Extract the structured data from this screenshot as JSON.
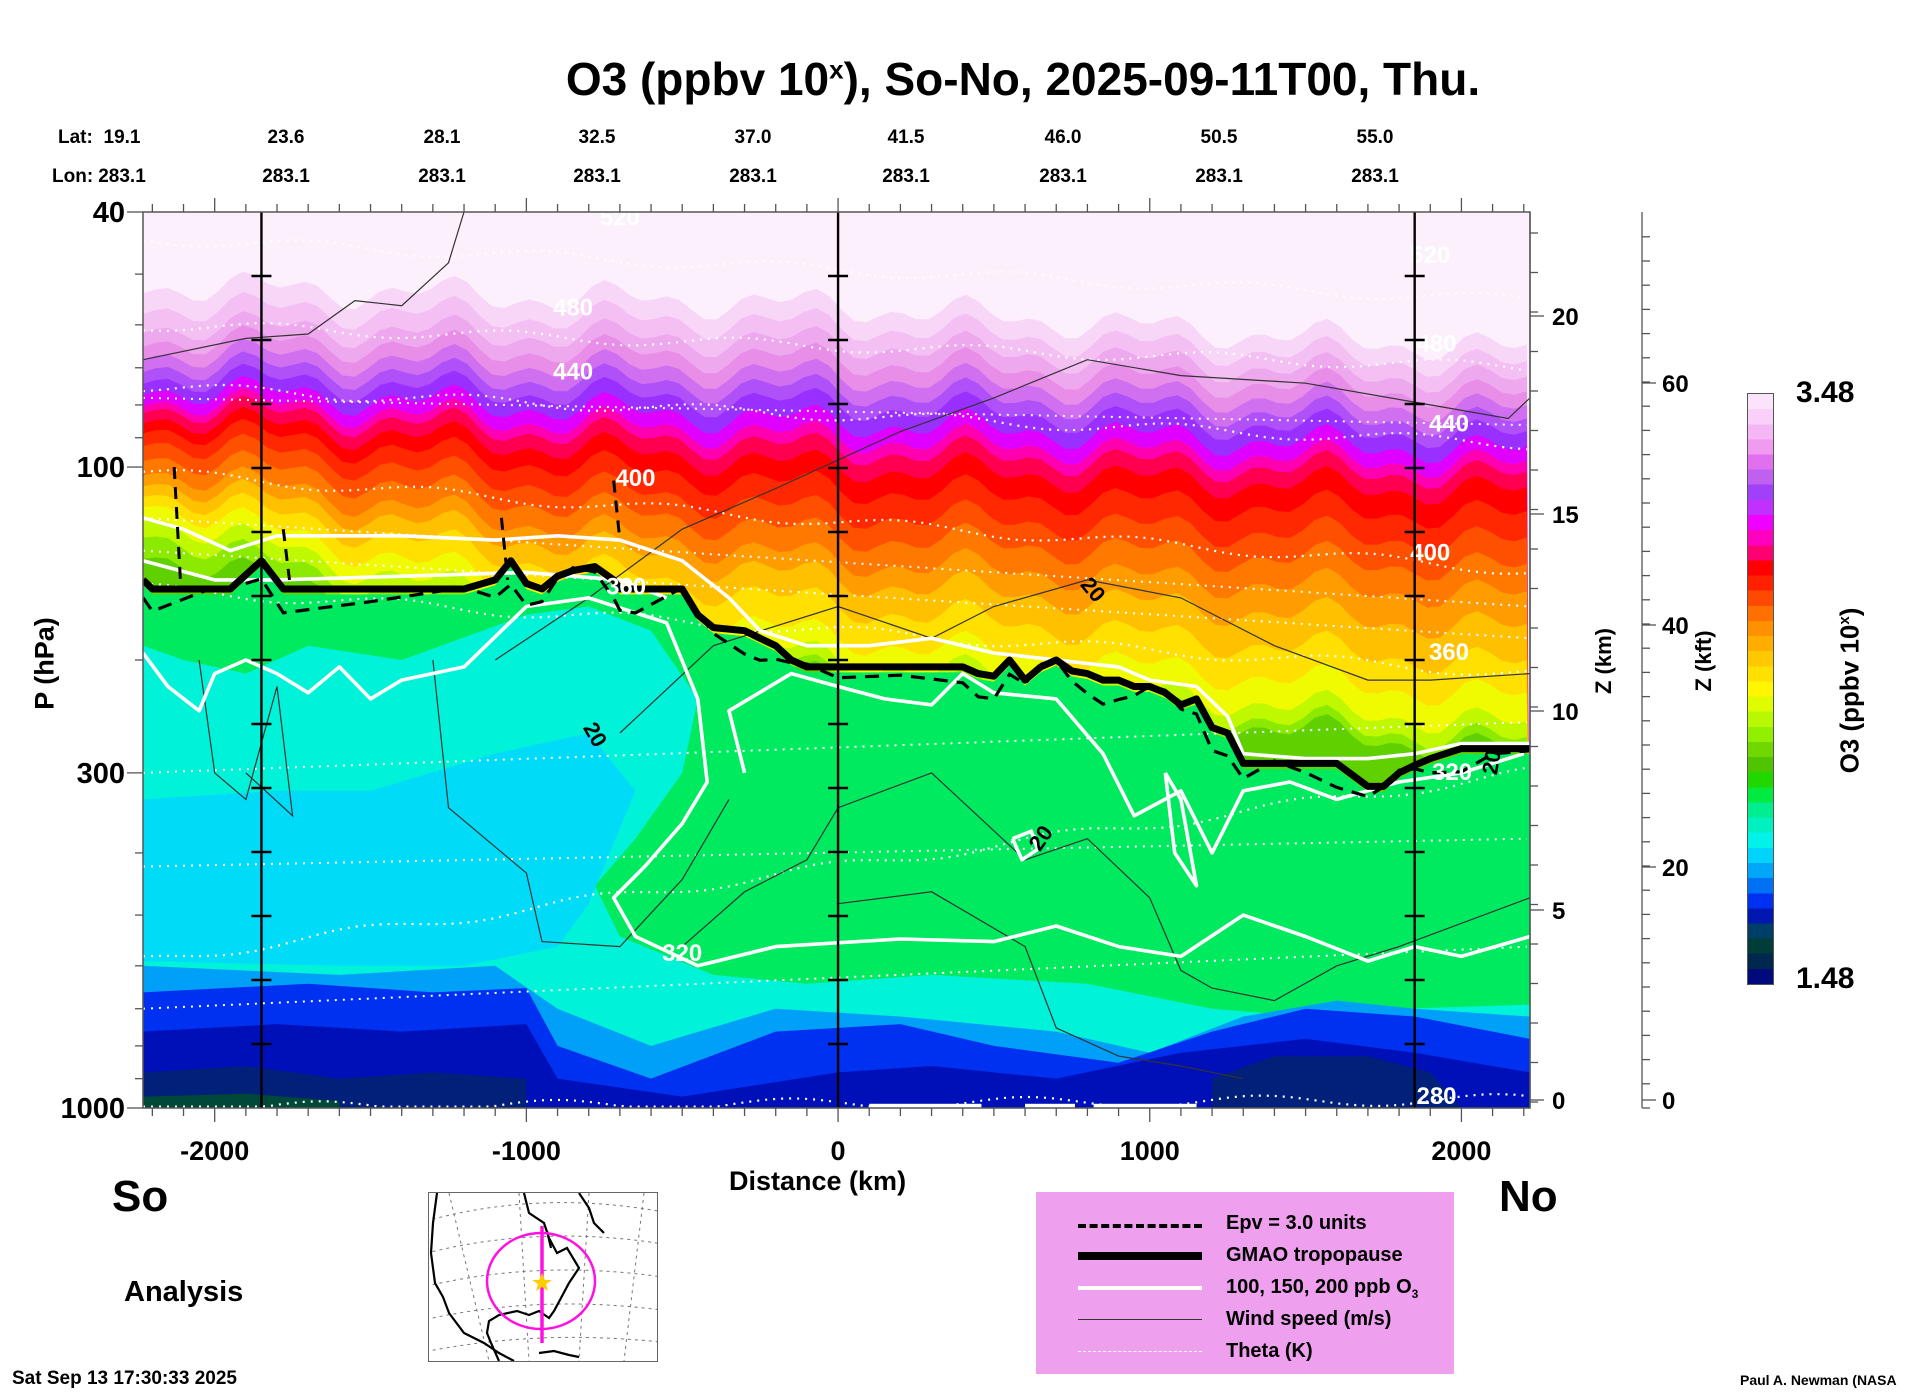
{
  "header": {
    "title_prefix": "O3 (ppbv 10",
    "title_sup": "x",
    "title_suffix": "), So-No, 2025-09-11T00, Thu.",
    "lat_label": "Lat:",
    "lon_label": "Lon:",
    "lats": [
      "19.1",
      "23.6",
      "28.1",
      "32.5",
      "37.0",
      "41.5",
      "46.0",
      "50.5",
      "55.0"
    ],
    "lons": [
      "283.1",
      "283.1",
      "283.1",
      "283.1",
      "283.1",
      "283.1",
      "283.1",
      "283.1",
      "283.1"
    ]
  },
  "labels": {
    "south": "So",
    "north": "No",
    "analysis": "Analysis",
    "timestamp": "Sat Sep 13 17:30:33 2025",
    "credit": "Paul A. Newman (NASA"
  },
  "legend": {
    "items": [
      {
        "label": "Epv = 3.0 units",
        "style": "dashed-thick"
      },
      {
        "label": "GMAO tropopause",
        "style": "solid-heavy"
      },
      {
        "label": "100, 150, 200 ppb O",
        "sub": "3",
        "style": "solid-white"
      },
      {
        "label": "Wind speed (m/s)",
        "style": "solid-thin"
      },
      {
        "label": "Theta (K)",
        "style": "dotted-white"
      }
    ]
  },
  "colorbar": {
    "max_label": "3.48",
    "min_label": "1.48",
    "title_prefix": "O3 (ppbv 10",
    "title_sup": "x",
    "title_suffix": ")",
    "colors": [
      "#000a7a",
      "#00284e",
      "#003c38",
      "#003e6a",
      "#0018b0",
      "#0030f0",
      "#0070f5",
      "#00a6f8",
      "#00d4fa",
      "#00f2e8",
      "#00f0c0",
      "#00ee90",
      "#00ea40",
      "#20d800",
      "#50c400",
      "#70d800",
      "#90f000",
      "#b8f800",
      "#e0fc00",
      "#fff600",
      "#ffe000",
      "#ffc800",
      "#ffae00",
      "#ff9000",
      "#ff7000",
      "#ff4800",
      "#ff2000",
      "#ff0000",
      "#ff0070",
      "#ff00c0",
      "#f000ff",
      "#c030ff",
      "#a040f8",
      "#c060f0",
      "#e070f0",
      "#f09af0",
      "#f4b6f4",
      "#f8d0f8",
      "#fbe4fb"
    ]
  },
  "chart_data": {
    "type": "heatmap",
    "title": "O3 (ppbv 10^x), So-No, 2025-09-11T00, Thu.",
    "xlabel": "Distance (km)",
    "ylabel": "P (hPa)",
    "xlim": [
      -2230,
      2220
    ],
    "ylim": [
      1000,
      40
    ],
    "xticks": [
      -2000,
      -1000,
      0,
      1000,
      2000
    ],
    "xtick_labels": [
      "-2000",
      "-1000",
      "0",
      "1000",
      "2000"
    ],
    "yticks": [
      40,
      100,
      300,
      1000
    ],
    "ytick_labels": [
      "40",
      "100",
      "300",
      "1000"
    ],
    "y2_label": "Z (km)",
    "y2_ticks": [
      "0",
      "5",
      "10",
      "15",
      "20"
    ],
    "y3_label": "Z (kft)",
    "y3_ticks": [
      "0",
      "20",
      "40",
      "60"
    ],
    "colorbar_range": [
      1.48,
      3.48
    ],
    "vertical_markers_km": [
      -1850,
      0,
      1850
    ],
    "tropopause": {
      "name": "GMAO tropopause",
      "x": [
        -2230,
        -2200,
        -2000,
        -1950,
        -1850,
        -1780,
        -1500,
        -1200,
        -1100,
        -1050,
        -1000,
        -950,
        -900,
        -850,
        -780,
        -720,
        -700,
        -650,
        -500,
        -450,
        -400,
        -300,
        -250,
        -200,
        -150,
        -100,
        0,
        200,
        400,
        450,
        500,
        550,
        600,
        650,
        700,
        750,
        800,
        850,
        900,
        950,
        1000,
        1050,
        1100,
        1150,
        1200,
        1250,
        1300,
        1400,
        1500,
        1600,
        1700,
        1750,
        1800,
        1850,
        1900,
        2000,
        2100,
        2220
      ],
      "p": [
        150,
        155,
        155,
        155,
        140,
        155,
        155,
        155,
        150,
        140,
        152,
        155,
        148,
        145,
        143,
        150,
        155,
        155,
        155,
        170,
        178,
        180,
        185,
        190,
        200,
        205,
        205,
        205,
        205,
        210,
        212,
        200,
        215,
        205,
        200,
        208,
        210,
        215,
        215,
        220,
        220,
        225,
        235,
        230,
        255,
        260,
        290,
        290,
        290,
        290,
        315,
        315,
        300,
        292,
        285,
        275,
        275,
        275
      ]
    },
    "theta_levels_K": [
      {
        "label": "520",
        "p_left": 44,
        "p_right": 55
      },
      {
        "label": "480",
        "p_left": 60,
        "p_right": 70
      },
      {
        "label": "440",
        "p_left": 75,
        "p_right": 92
      },
      {
        "label": "400",
        "p_left": 102,
        "p_right": 145
      },
      {
        "label": "360",
        "p_left": 155,
        "p_right": 210
      },
      {
        "label": "320",
        "p_left": 590,
        "p_right": 300
      },
      {
        "label": "280",
        "p_left": 1000,
        "p_right": 970
      }
    ],
    "wind_speed_label_ms": "20",
    "ozone_contour_ppb": [
      "100",
      "150",
      "200"
    ]
  }
}
